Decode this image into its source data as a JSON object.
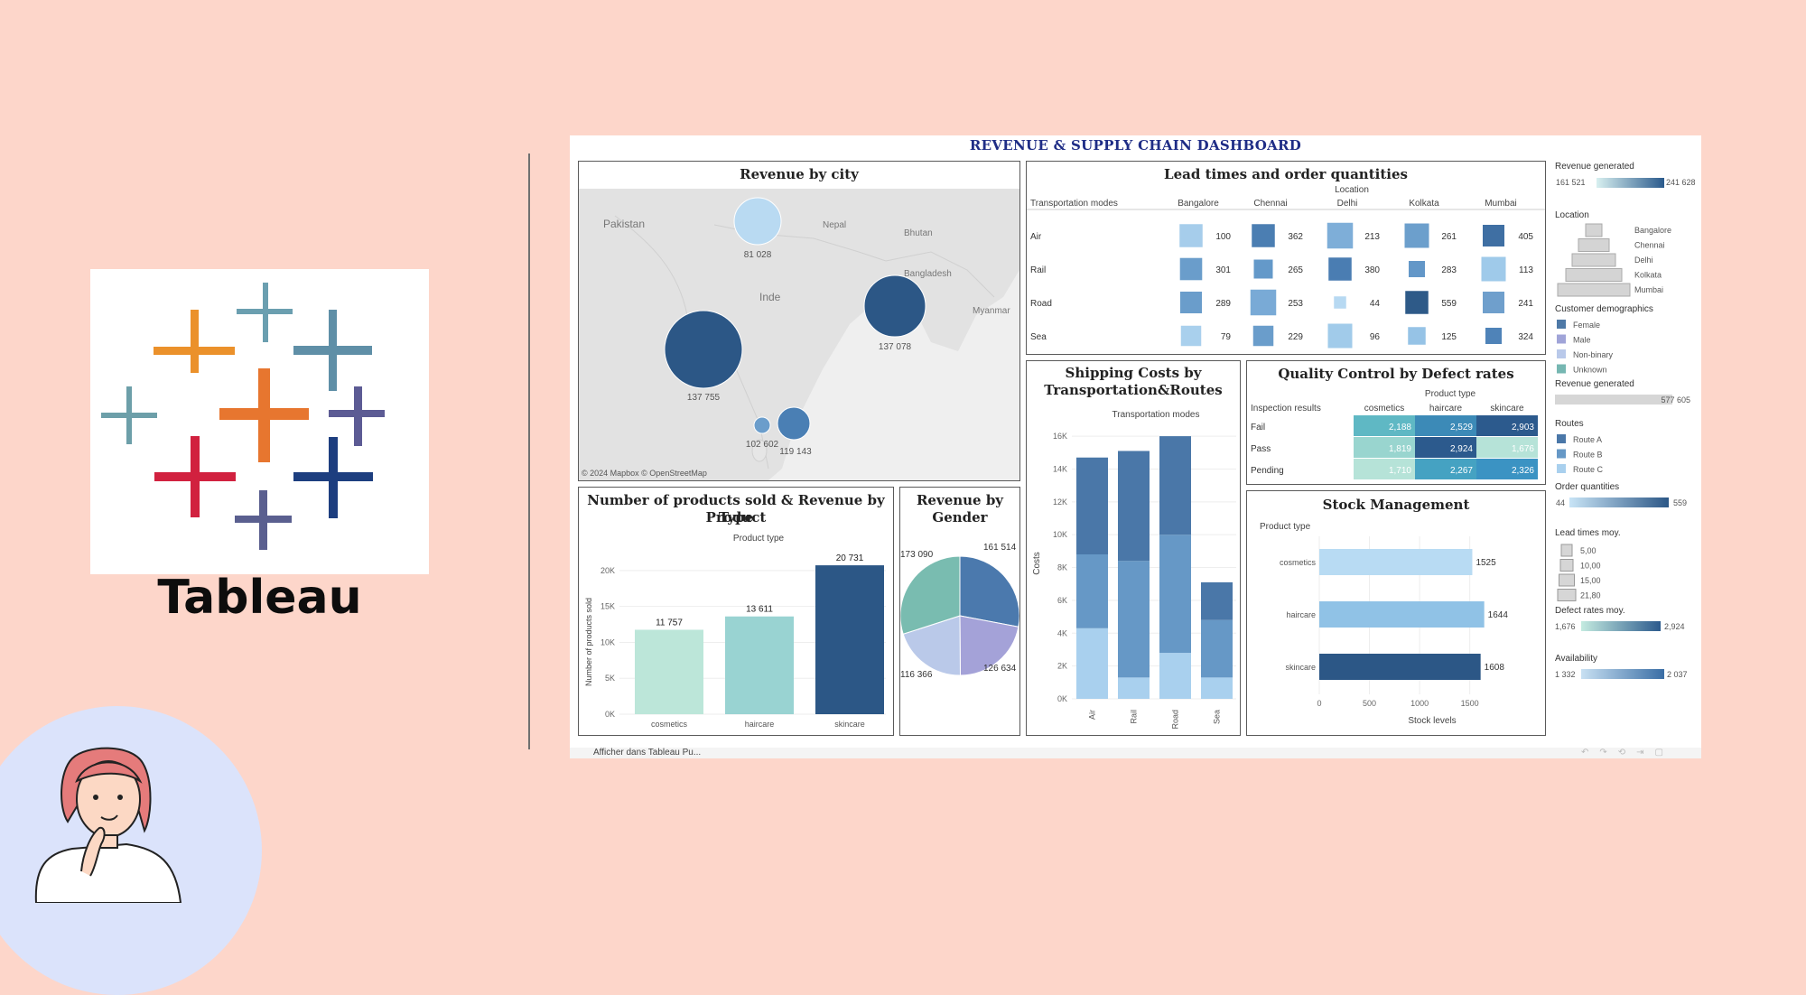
{
  "brand": {
    "wordmark": "Tableau"
  },
  "dashboard": {
    "title": "REVENUE & SUPPLY CHAIN DASHBOARD",
    "footer_link": "Afficher dans Tableau Pu..."
  },
  "map_panel": {
    "title": "Revenue by city",
    "labels": {
      "pakistan": "Pakistan",
      "nepal": "Nepal",
      "bhutan": "Bhutan",
      "bangladesh": "Bangladesh",
      "inde": "Inde",
      "myanmar": "Myanmar"
    },
    "attribution": "© 2024 Mapbox © OpenStreetMap",
    "bubbles": [
      {
        "city": "Delhi",
        "value": "81 028",
        "color": "#b9daf2"
      },
      {
        "city": "Kolkata",
        "value": "137 078",
        "color": "#2c5786"
      },
      {
        "city": "Mumbai",
        "value": "137 755",
        "color": "#2c5786"
      },
      {
        "city": "Bangalore",
        "value": "102 602",
        "color": "#6b9dcb"
      },
      {
        "city": "Chennai",
        "value": "119 143",
        "color": "#4a7fb4"
      }
    ]
  },
  "lead_panel": {
    "title": "Lead times and order quantities",
    "column_group": "Location",
    "row_header": "Transportation modes",
    "columns": [
      "Bangalore",
      "Chennai",
      "Delhi",
      "Kolkata",
      "Mumbai"
    ],
    "rows": [
      {
        "mode": "Air",
        "values": [
          "100",
          "362",
          "213",
          "261",
          "405"
        ]
      },
      {
        "mode": "Rail",
        "values": [
          "301",
          "265",
          "380",
          "283",
          "113"
        ]
      },
      {
        "mode": "Road",
        "values": [
          "289",
          "253",
          "44",
          "559",
          "241"
        ]
      },
      {
        "mode": "Sea",
        "values": [
          "79",
          "229",
          "96",
          "125",
          "324"
        ]
      }
    ],
    "sizes": [
      [
        0.85,
        0.85,
        0.95,
        0.9,
        0.8
      ],
      [
        0.82,
        0.7,
        0.85,
        0.6,
        0.9
      ],
      [
        0.8,
        0.95,
        0.45,
        0.85,
        0.8
      ],
      [
        0.75,
        0.75,
        0.9,
        0.65,
        0.6
      ]
    ],
    "colors": [
      [
        "#a6cdeb",
        "#4b7eb2",
        "#7eaed8",
        "#6c9fcc",
        "#3f6fa3"
      ],
      [
        "#6a9dcb",
        "#6499c9",
        "#4a7db2",
        "#6397c8",
        "#9fcaea"
      ],
      [
        "#6a9dcb",
        "#79aad6",
        "#b7d9f2",
        "#2e5a88",
        "#6f9fcc"
      ],
      [
        "#a9d0ed",
        "#6a9dcb",
        "#a1cbea",
        "#96c3e6",
        "#4f83b8"
      ]
    ]
  },
  "shipping_panel": {
    "title_line1": "Shipping Costs by",
    "title_line2": "Transportation&Routes",
    "x_header": "Transportation modes",
    "y_label": "Costs"
  },
  "quality_panel": {
    "title": "Quality Control by Defect rates",
    "column_group": "Product type",
    "row_header": "Inspection results",
    "columns": [
      "cosmetics",
      "haircare",
      "skincare"
    ],
    "rows": [
      {
        "label": "Fail",
        "values": [
          "2,188",
          "2,529",
          "2,903"
        ],
        "colors": [
          "#5fb8c4",
          "#3c8ab7",
          "#2c5a8d"
        ]
      },
      {
        "label": "Pass",
        "values": [
          "1,819",
          "2,924",
          "1,676"
        ],
        "colors": [
          "#99d5cf",
          "#2c5a8d",
          "#b6e3d8"
        ]
      },
      {
        "label": "Pending",
        "values": [
          "1,710",
          "2,267",
          "2,326"
        ],
        "colors": [
          "#b6e3d8",
          "#45a2c2",
          "#3b93c3"
        ]
      }
    ]
  },
  "products_panel": {
    "title_line1": "Number of products sold & Revenue by Product",
    "title_line2": "Type",
    "x_header": "Product type",
    "y_label": "Number of products sold"
  },
  "gender_panel": {
    "title_line1": "Revenue by",
    "title_line2": "Gender",
    "slices": [
      {
        "label": "161 514",
        "color": "#4b79ad"
      },
      {
        "label": "126 634",
        "color": "#a4a2d8"
      },
      {
        "label": "116 366",
        "color": "#bac9e9"
      },
      {
        "label": "173 090",
        "color": "#79bcb0"
      }
    ]
  },
  "stock_panel": {
    "title": "Stock Management",
    "row_header": "Product type",
    "x_label": "Stock levels"
  },
  "chart_data": [
    {
      "type": "bar",
      "title": "Number of products sold & Revenue by Product Type",
      "xlabel": "Product type",
      "ylabel": "Number of products sold",
      "categories": [
        "cosmetics",
        "haircare",
        "skincare"
      ],
      "values": [
        11757,
        13611,
        20731
      ],
      "value_labels": [
        "11 757",
        "13 611",
        "20 731"
      ],
      "colors": [
        "#bce6d9",
        "#99d3d2",
        "#2c5786"
      ],
      "ylim": [
        0,
        22000
      ],
      "yticks": [
        0,
        5000,
        10000,
        15000,
        20000
      ],
      "ytick_labels": [
        "0K",
        "5K",
        "10K",
        "15K",
        "20K"
      ]
    },
    {
      "type": "bar",
      "stacked": true,
      "title": "Shipping Costs by Transportation&Routes",
      "xlabel": "Transportation modes",
      "ylabel": "Costs",
      "categories": [
        "Air",
        "Rail",
        "Road",
        "Sea"
      ],
      "series": [
        {
          "values": [
            4300,
            1300,
            2800,
            1300
          ],
          "color": "#a9d0ee"
        },
        {
          "values": [
            4500,
            7100,
            7200,
            3500
          ],
          "color": "#6698c6"
        },
        {
          "values": [
            5900,
            6700,
            6000,
            2300
          ],
          "color": "#4a77a8"
        }
      ],
      "ylim": [
        0,
        16500
      ],
      "yticks": [
        0,
        2000,
        4000,
        6000,
        8000,
        10000,
        12000,
        14000,
        16000
      ],
      "ytick_labels": [
        "0K",
        "2K",
        "4K",
        "6K",
        "8K",
        "10K",
        "12K",
        "14K",
        "16K"
      ]
    },
    {
      "type": "pie",
      "title": "Revenue by Gender",
      "values": [
        161514,
        126634,
        116366,
        173090
      ],
      "value_labels": [
        "161 514",
        "126 634",
        "116 366",
        "173 090"
      ]
    },
    {
      "type": "bar",
      "orientation": "horizontal",
      "title": "Stock Management",
      "xlabel": "Stock levels",
      "categories": [
        "cosmetics",
        "haircare",
        "skincare"
      ],
      "values": [
        1525,
        1644,
        1608
      ],
      "colors": [
        "#b8dbf3",
        "#90c2e6",
        "#2c5786"
      ],
      "xlim": [
        0,
        1800
      ],
      "xticks": [
        0,
        500,
        1000,
        1500
      ],
      "xtick_labels": [
        "0",
        "500",
        "1000",
        "1500"
      ]
    }
  ],
  "legend": {
    "revenue_title": "Revenue generated",
    "revenue_min": "161 521",
    "revenue_max": "241 628",
    "location_title": "Location",
    "locations": [
      "Bangalore",
      "Chennai",
      "Delhi",
      "Kolkata",
      "Mumbai"
    ],
    "demographics_title": "Customer demographics",
    "demographics": [
      {
        "label": "Female",
        "color": "#4e79a7"
      },
      {
        "label": "Male",
        "color": "#a0a4d8"
      },
      {
        "label": "Non-binary",
        "color": "#b9c9ea"
      },
      {
        "label": "Unknown",
        "color": "#76b7b2"
      }
    ],
    "revenue2_title": "Revenue generated",
    "revenue2_value": "577 605",
    "routes_title": "Routes",
    "routes": [
      {
        "label": "Route A",
        "color": "#4a77a8"
      },
      {
        "label": "Route B",
        "color": "#6698c6"
      },
      {
        "label": "Route C",
        "color": "#a9d0ee"
      }
    ],
    "orderq_title": "Order quantities",
    "orderq_min": "44",
    "orderq_max": "559",
    "lead_title": "Lead times moy.",
    "lead_values": [
      "5,00",
      "10,00",
      "15,00",
      "21,80"
    ],
    "defect_title": "Defect rates moy.",
    "defect_min": "1,676",
    "defect_max": "2,924",
    "avail_title": "Availability",
    "avail_min": "1 332",
    "avail_max": "2 037"
  }
}
